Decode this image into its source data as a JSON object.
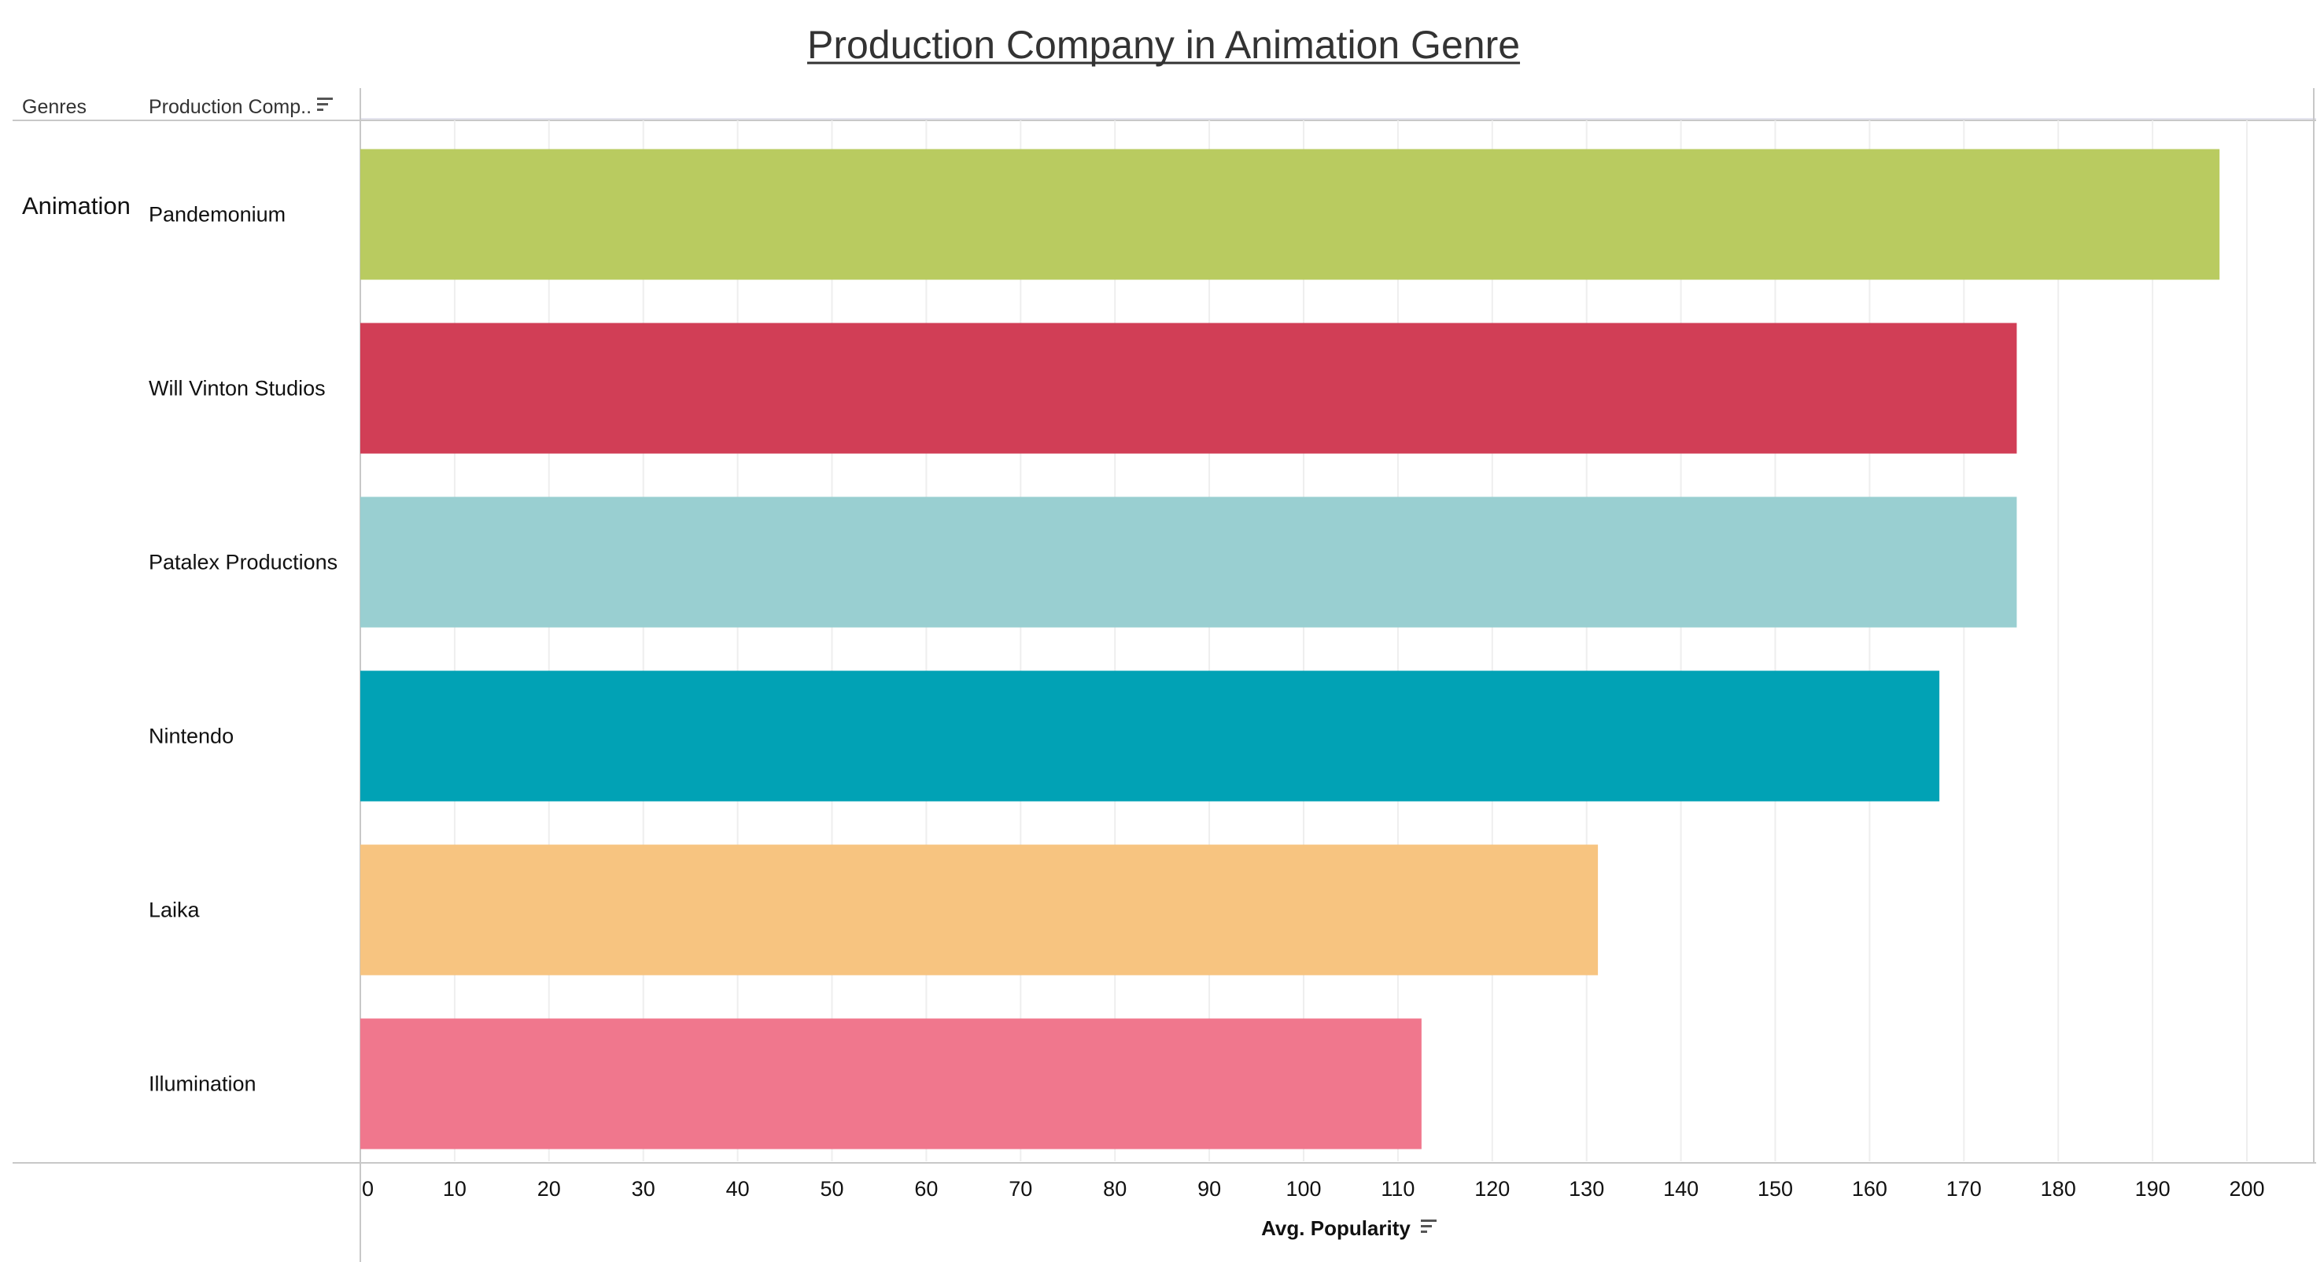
{
  "chart_data": {
    "type": "bar",
    "orientation": "horizontal",
    "title": "Production Company in Animation Genre",
    "row_headers": [
      "Genres",
      "Production Comp.."
    ],
    "genre": "Animation",
    "categories": [
      "Pandemonium",
      "Will Vinton Studios",
      "Patalex Productions",
      "Nintendo",
      "Laika",
      "Illumination"
    ],
    "values": [
      197.1,
      175.6,
      175.6,
      167.4,
      131.2,
      112.5
    ],
    "colors": [
      "#b9cb60",
      "#d13e56",
      "#99cfd1",
      "#01a2b5",
      "#f7c480",
      "#f0778d"
    ],
    "xlabel": "Avg. Popularity",
    "xlim": [
      0,
      200
    ],
    "xticks": [
      0,
      10,
      20,
      30,
      40,
      50,
      60,
      70,
      80,
      90,
      100,
      110,
      120,
      130,
      140,
      150,
      160,
      170,
      180,
      190,
      200
    ],
    "grid": "vertical",
    "sorted": "descending"
  },
  "icons": {
    "sort": "sort-descending-icon"
  }
}
